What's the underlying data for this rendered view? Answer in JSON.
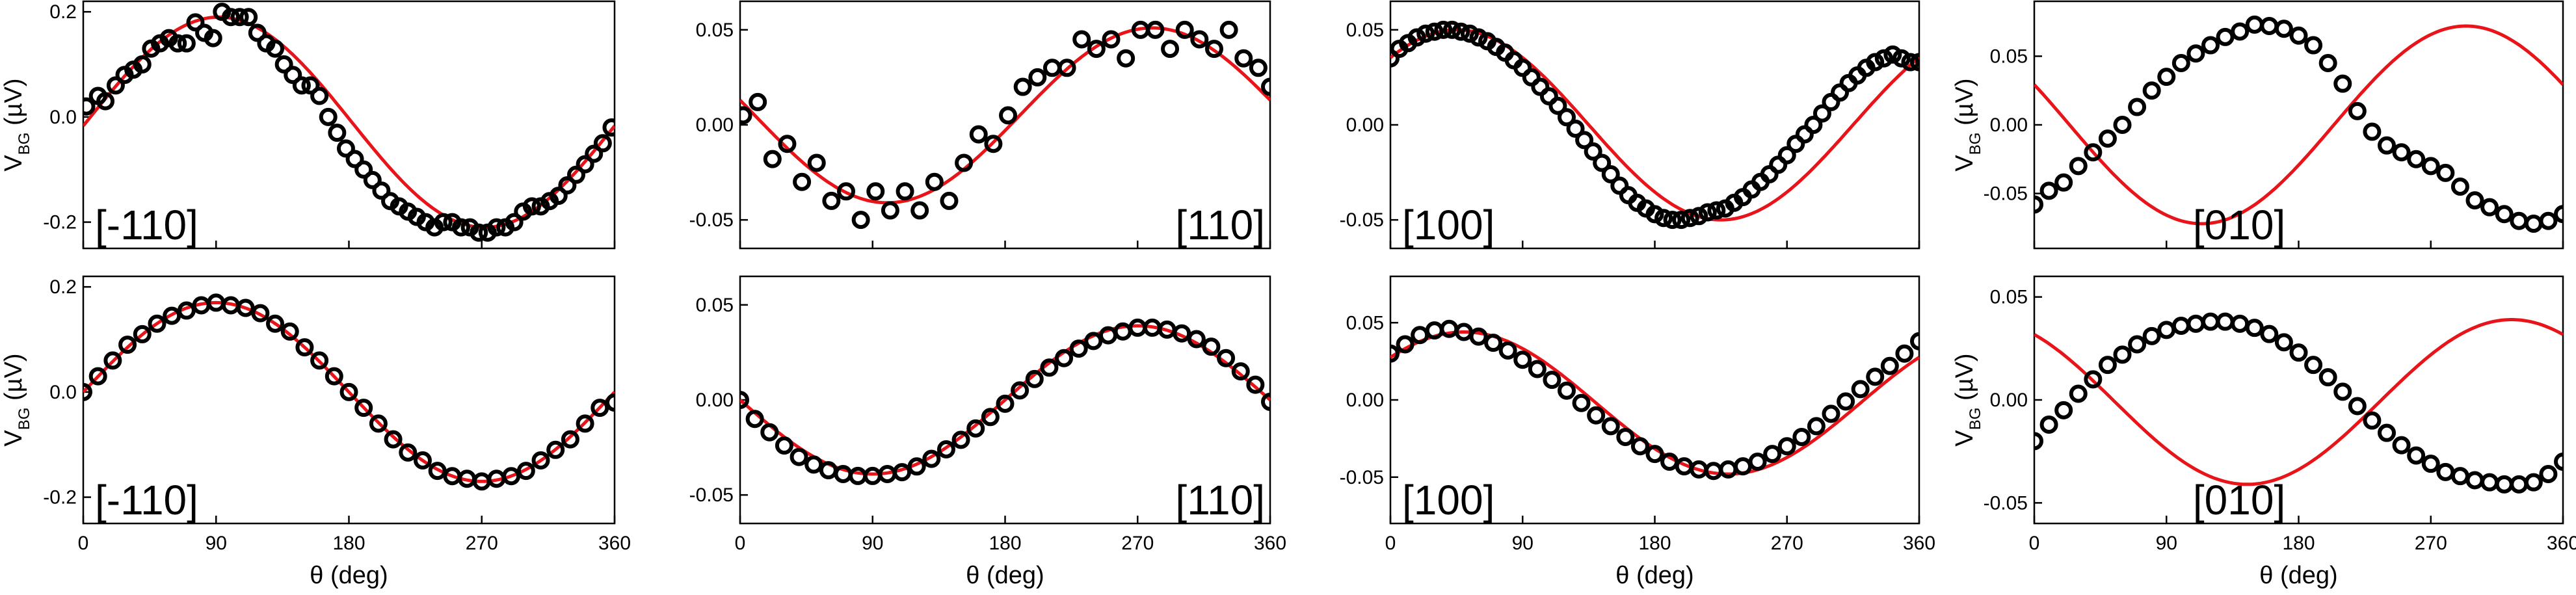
{
  "figure": {
    "ylabel_main": "V",
    "ylabel_sub": "BG",
    "ylabel_unit": " (µV)",
    "xlabel": "θ (deg)"
  },
  "chart_data": [
    {
      "type": "scatter",
      "title": "[-110]",
      "row": 1,
      "col": 1,
      "xlim": [
        0,
        360
      ],
      "ylim": [
        -0.25,
        0.22
      ],
      "yticks": [
        0.2,
        0.0,
        -0.2
      ],
      "ytick_labels": [
        "0.2",
        "0.0",
        "-0.2"
      ],
      "xlabel": "",
      "ylabel": "V_BG (µV)",
      "label_pos": "bottom-left",
      "x": [
        2,
        10,
        15,
        22,
        28,
        34,
        40,
        46,
        52,
        58,
        64,
        70,
        76,
        82,
        88,
        94,
        100,
        106,
        112,
        118,
        124,
        130,
        136,
        142,
        148,
        154,
        160,
        166,
        172,
        178,
        184,
        190,
        196,
        202,
        208,
        214,
        220,
        226,
        232,
        238,
        244,
        250,
        256,
        262,
        268,
        274,
        280,
        286,
        292,
        298,
        304,
        310,
        316,
        322,
        328,
        334,
        340,
        346,
        352,
        358
      ],
      "y": [
        0.02,
        0.04,
        0.03,
        0.06,
        0.08,
        0.09,
        0.1,
        0.13,
        0.14,
        0.15,
        0.14,
        0.14,
        0.18,
        0.16,
        0.15,
        0.2,
        0.19,
        0.19,
        0.19,
        0.16,
        0.14,
        0.13,
        0.1,
        0.08,
        0.06,
        0.06,
        0.04,
        0.0,
        -0.03,
        -0.06,
        -0.08,
        -0.1,
        -0.12,
        -0.14,
        -0.16,
        -0.17,
        -0.18,
        -0.19,
        -0.2,
        -0.21,
        -0.2,
        -0.2,
        -0.21,
        -0.21,
        -0.22,
        -0.22,
        -0.21,
        -0.21,
        -0.2,
        -0.18,
        -0.17,
        -0.17,
        -0.16,
        -0.15,
        -0.13,
        -0.11,
        -0.09,
        -0.07,
        -0.05,
        -0.02
      ],
      "fit": {
        "amp": 0.2,
        "phase_deg": 92,
        "offset": -0.01
      }
    },
    {
      "type": "scatter",
      "title": "[110]",
      "row": 1,
      "col": 2,
      "xlim": [
        0,
        360
      ],
      "ylim": [
        -0.065,
        0.065
      ],
      "yticks": [
        0.05,
        0.0,
        -0.05
      ],
      "ytick_labels": [
        "0.05",
        "0.00",
        "-0.05"
      ],
      "xlabel": "",
      "ylabel": "",
      "label_pos": "bottom-right",
      "x": [
        2,
        12,
        22,
        32,
        42,
        52,
        62,
        72,
        82,
        92,
        102,
        112,
        122,
        132,
        142,
        152,
        162,
        172,
        182,
        192,
        202,
        212,
        222,
        232,
        242,
        252,
        262,
        272,
        282,
        292,
        302,
        312,
        322,
        332,
        342,
        352,
        360
      ],
      "y": [
        0.005,
        0.012,
        -0.018,
        -0.01,
        -0.03,
        -0.02,
        -0.04,
        -0.035,
        -0.05,
        -0.035,
        -0.045,
        -0.035,
        -0.045,
        -0.03,
        -0.04,
        -0.02,
        -0.005,
        -0.01,
        0.005,
        0.02,
        0.025,
        0.03,
        0.03,
        0.045,
        0.04,
        0.045,
        0.035,
        0.05,
        0.05,
        0.04,
        0.05,
        0.045,
        0.04,
        0.05,
        0.035,
        0.03,
        0.02
      ],
      "fit": {
        "amp": 0.046,
        "phase_deg": -80,
        "offset": 0.005
      }
    },
    {
      "type": "scatter",
      "title": "[100]",
      "row": 1,
      "col": 3,
      "xlim": [
        0,
        360
      ],
      "ylim": [
        -0.065,
        0.065
      ],
      "yticks": [
        0.05,
        0.0,
        -0.05
      ],
      "ytick_labels": [
        "0.05",
        "0.00",
        "-0.05"
      ],
      "xlabel": "",
      "ylabel": "",
      "label_pos": "bottom-left",
      "x": [
        0,
        6,
        12,
        18,
        24,
        30,
        36,
        42,
        48,
        54,
        60,
        66,
        72,
        78,
        84,
        90,
        96,
        102,
        108,
        114,
        120,
        126,
        132,
        138,
        144,
        150,
        156,
        162,
        168,
        174,
        180,
        186,
        192,
        198,
        204,
        210,
        216,
        222,
        228,
        234,
        240,
        246,
        252,
        258,
        264,
        270,
        276,
        282,
        288,
        294,
        300,
        306,
        312,
        318,
        324,
        330,
        336,
        342,
        348,
        354,
        360
      ],
      "y": [
        0.035,
        0.04,
        0.043,
        0.046,
        0.048,
        0.049,
        0.05,
        0.05,
        0.049,
        0.048,
        0.046,
        0.044,
        0.041,
        0.038,
        0.034,
        0.03,
        0.025,
        0.02,
        0.015,
        0.01,
        0.004,
        -0.002,
        -0.008,
        -0.014,
        -0.02,
        -0.026,
        -0.032,
        -0.037,
        -0.041,
        -0.044,
        -0.047,
        -0.049,
        -0.05,
        -0.05,
        -0.049,
        -0.048,
        -0.046,
        -0.045,
        -0.044,
        -0.041,
        -0.038,
        -0.034,
        -0.03,
        -0.026,
        -0.021,
        -0.016,
        -0.01,
        -0.005,
        0.0,
        0.006,
        0.012,
        0.017,
        0.022,
        0.026,
        0.03,
        0.033,
        0.035,
        0.037,
        0.035,
        0.033,
        0.033
      ],
      "fit": {
        "amp": 0.05,
        "phase_deg": 45,
        "offset": 0.0
      }
    },
    {
      "type": "scatter",
      "title": "[010]",
      "row": 1,
      "col": 4,
      "xlim": [
        0,
        360
      ],
      "ylim": [
        -0.09,
        0.09
      ],
      "yticks": [
        0.05,
        0.0,
        -0.05
      ],
      "ytick_labels": [
        "0.05",
        "0.00",
        "-0.05"
      ],
      "xlabel": "",
      "ylabel": "V_BG (µV)",
      "label_pos": "bottom-center",
      "x": [
        0,
        10,
        20,
        30,
        40,
        50,
        60,
        70,
        80,
        90,
        100,
        110,
        120,
        130,
        140,
        150,
        160,
        170,
        180,
        190,
        200,
        210,
        220,
        230,
        240,
        250,
        260,
        270,
        280,
        290,
        300,
        310,
        320,
        330,
        340,
        350,
        360
      ],
      "y": [
        -0.058,
        -0.048,
        -0.042,
        -0.03,
        -0.02,
        -0.01,
        0.0,
        0.013,
        0.025,
        0.035,
        0.045,
        0.052,
        0.058,
        0.064,
        0.068,
        0.073,
        0.072,
        0.07,
        0.065,
        0.058,
        0.045,
        0.03,
        0.01,
        -0.005,
        -0.015,
        -0.02,
        -0.025,
        -0.03,
        -0.035,
        -0.045,
        -0.055,
        -0.06,
        -0.065,
        -0.07,
        -0.072,
        -0.07,
        -0.065
      ],
      "fit": {
        "amp": 0.072,
        "phase_deg": -66,
        "offset": 0.0
      }
    },
    {
      "type": "scatter",
      "title": "[-110]",
      "row": 2,
      "col": 1,
      "xlim": [
        0,
        360
      ],
      "ylim": [
        -0.25,
        0.22
      ],
      "yticks": [
        0.2,
        0.0,
        -0.2
      ],
      "ytick_labels": [
        "0.2",
        "0.0",
        "-0.2"
      ],
      "xlabel": "θ (deg)",
      "ylabel": "V_BG (µV)",
      "label_pos": "bottom-left",
      "x": [
        0,
        10,
        20,
        30,
        40,
        50,
        60,
        70,
        80,
        90,
        100,
        110,
        120,
        130,
        140,
        150,
        160,
        170,
        180,
        190,
        200,
        210,
        220,
        230,
        240,
        250,
        260,
        270,
        280,
        290,
        300,
        310,
        320,
        330,
        340,
        350,
        360
      ],
      "y": [
        0.0,
        0.03,
        0.06,
        0.09,
        0.11,
        0.13,
        0.145,
        0.155,
        0.165,
        0.17,
        0.165,
        0.16,
        0.15,
        0.13,
        0.115,
        0.085,
        0.06,
        0.03,
        0.0,
        -0.03,
        -0.06,
        -0.09,
        -0.115,
        -0.13,
        -0.15,
        -0.16,
        -0.165,
        -0.17,
        -0.165,
        -0.16,
        -0.15,
        -0.13,
        -0.11,
        -0.09,
        -0.06,
        -0.03,
        -0.02
      ],
      "fit": {
        "amp": 0.17,
        "phase_deg": 90,
        "offset": 0.0
      }
    },
    {
      "type": "scatter",
      "title": "[110]",
      "row": 2,
      "col": 2,
      "xlim": [
        0,
        360
      ],
      "ylim": [
        -0.065,
        0.065
      ],
      "yticks": [
        0.05,
        0.0,
        -0.05
      ],
      "ytick_labels": [
        "0.05",
        "0.00",
        "-0.05"
      ],
      "xlabel": "θ (deg)",
      "ylabel": "",
      "label_pos": "bottom-right",
      "x": [
        0,
        10,
        20,
        30,
        40,
        50,
        60,
        70,
        80,
        90,
        100,
        110,
        120,
        130,
        140,
        150,
        160,
        170,
        180,
        190,
        200,
        210,
        220,
        230,
        240,
        250,
        260,
        270,
        280,
        290,
        300,
        310,
        320,
        330,
        340,
        350,
        360
      ],
      "y": [
        0.0,
        -0.01,
        -0.017,
        -0.024,
        -0.03,
        -0.034,
        -0.037,
        -0.039,
        -0.04,
        -0.04,
        -0.039,
        -0.038,
        -0.035,
        -0.031,
        -0.026,
        -0.021,
        -0.015,
        -0.009,
        -0.002,
        0.005,
        0.011,
        0.017,
        0.022,
        0.027,
        0.031,
        0.034,
        0.036,
        0.038,
        0.038,
        0.037,
        0.035,
        0.032,
        0.028,
        0.022,
        0.015,
        0.008,
        -0.001
      ],
      "fit": {
        "amp": 0.039,
        "phase_deg": -90,
        "offset": 0.0
      }
    },
    {
      "type": "scatter",
      "title": "[100]",
      "row": 2,
      "col": 3,
      "xlim": [
        0,
        360
      ],
      "ylim": [
        -0.08,
        0.08
      ],
      "yticks": [
        0.05,
        0.0,
        -0.05
      ],
      "ytick_labels": [
        "0.05",
        "0.00",
        "-0.05"
      ],
      "xlabel": "θ (deg)",
      "ylabel": "",
      "label_pos": "bottom-left",
      "x": [
        0,
        10,
        20,
        30,
        40,
        50,
        60,
        70,
        80,
        90,
        100,
        110,
        120,
        130,
        140,
        150,
        160,
        170,
        180,
        190,
        200,
        210,
        220,
        230,
        240,
        250,
        260,
        270,
        280,
        290,
        300,
        310,
        320,
        330,
        340,
        350,
        360
      ],
      "y": [
        0.03,
        0.036,
        0.042,
        0.045,
        0.046,
        0.044,
        0.041,
        0.037,
        0.032,
        0.026,
        0.02,
        0.013,
        0.006,
        -0.002,
        -0.01,
        -0.017,
        -0.024,
        -0.03,
        -0.035,
        -0.04,
        -0.043,
        -0.045,
        -0.046,
        -0.045,
        -0.043,
        -0.04,
        -0.035,
        -0.03,
        -0.024,
        -0.017,
        -0.009,
        -0.001,
        0.007,
        0.015,
        0.022,
        0.03,
        0.038
      ],
      "fit": {
        "amp": 0.046,
        "phase_deg": 50,
        "offset": -0.002
      }
    },
    {
      "type": "scatter",
      "title": "[010]",
      "row": 2,
      "col": 4,
      "xlim": [
        0,
        360
      ],
      "ylim": [
        -0.06,
        0.06
      ],
      "yticks": [
        0.05,
        0.0,
        -0.05
      ],
      "ytick_labels": [
        "0.05",
        "0.00",
        "-0.05"
      ],
      "xlabel": "θ (deg)",
      "ylabel": "V_BG (µV)",
      "label_pos": "bottom-center",
      "x": [
        0,
        10,
        20,
        30,
        40,
        50,
        60,
        70,
        80,
        90,
        100,
        110,
        120,
        130,
        140,
        150,
        160,
        170,
        180,
        190,
        200,
        210,
        220,
        230,
        240,
        250,
        260,
        270,
        280,
        290,
        300,
        310,
        320,
        330,
        340,
        350,
        360
      ],
      "y": [
        -0.02,
        -0.012,
        -0.005,
        0.003,
        0.01,
        0.017,
        0.022,
        0.027,
        0.031,
        0.034,
        0.036,
        0.037,
        0.038,
        0.038,
        0.037,
        0.035,
        0.032,
        0.028,
        0.023,
        0.017,
        0.011,
        0.004,
        -0.003,
        -0.01,
        -0.016,
        -0.022,
        -0.027,
        -0.031,
        -0.035,
        -0.037,
        -0.039,
        -0.04,
        -0.041,
        -0.041,
        -0.04,
        -0.036,
        -0.03
      ],
      "fit": {
        "amp": 0.04,
        "phase_deg": -35,
        "offset": -0.001
      }
    }
  ],
  "x_axis": {
    "ticks": [
      0,
      90,
      180,
      270,
      360
    ],
    "tick_labels": [
      "0",
      "90",
      "180",
      "270",
      "360"
    ]
  }
}
